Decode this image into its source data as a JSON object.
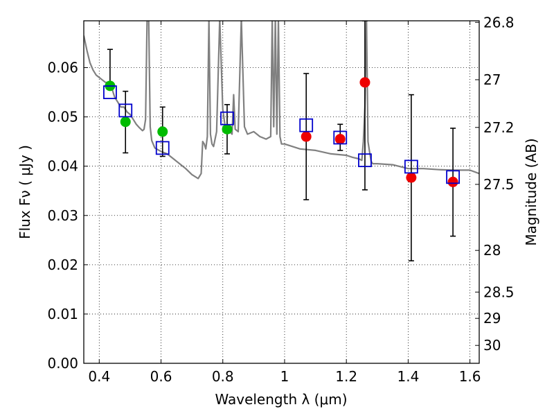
{
  "chart_data": {
    "type": "scatter",
    "xlabel": "Wavelength  λ (μm)",
    "ylabel": "Flux  Fν  ( μJy )",
    "y2label": "Magnitude (AB)",
    "xlim": [
      0.35,
      1.63
    ],
    "ylim": [
      0.0,
      0.0695
    ],
    "xticks": [
      0.4,
      0.6,
      0.8,
      1.0,
      1.2,
      1.4,
      1.6
    ],
    "xtick_labels": [
      "0.4",
      "0.6",
      "0.8",
      "1",
      "1.2",
      "1.4",
      "1.6"
    ],
    "yticks": [
      0.0,
      0.01,
      0.02,
      0.03,
      0.04,
      0.05,
      0.06
    ],
    "ytick_labels": [
      "0.00",
      "0.01",
      "0.02",
      "0.03",
      "0.04",
      "0.05",
      "0.06"
    ],
    "mag_ticks": [
      26.8,
      27,
      27.2,
      27.5,
      28,
      28.5,
      29,
      30
    ],
    "mag_tick_labels": [
      "26.8",
      "27",
      "27.2",
      "27.5",
      "28",
      "28.5",
      "29",
      "30"
    ],
    "grid": true,
    "colors": {
      "model": "#808080",
      "detection_green": "#00bb00",
      "detection_red": "#ee0000",
      "model_box": "#0000cc",
      "errorbar": "#000000"
    },
    "series": [
      {
        "name": "model spectrum",
        "kind": "line",
        "x": [
          0.35,
          0.36,
          0.37,
          0.38,
          0.39,
          0.4,
          0.41,
          0.42,
          0.43,
          0.44,
          0.45,
          0.46,
          0.47,
          0.48,
          0.49,
          0.5,
          0.51,
          0.52,
          0.53,
          0.54,
          0.545,
          0.55,
          0.555,
          0.56,
          0.565,
          0.57,
          0.58,
          0.6,
          0.62,
          0.64,
          0.66,
          0.68,
          0.7,
          0.72,
          0.73,
          0.735,
          0.74,
          0.745,
          0.75,
          0.755,
          0.76,
          0.765,
          0.77,
          0.78,
          0.79,
          0.8,
          0.81,
          0.815,
          0.82,
          0.83,
          0.835,
          0.84,
          0.85,
          0.86,
          0.87,
          0.88,
          0.9,
          0.92,
          0.94,
          0.955,
          0.96,
          0.965,
          0.97,
          0.975,
          0.98,
          0.985,
          0.99,
          1.0,
          1.05,
          1.1,
          1.15,
          1.2,
          1.22,
          1.24,
          1.25,
          1.255,
          1.26,
          1.265,
          1.27,
          1.275,
          1.28,
          1.285,
          1.29,
          1.3,
          1.35,
          1.4,
          1.45,
          1.5,
          1.55,
          1.6,
          1.63
        ],
        "y": [
          0.0665,
          0.0635,
          0.061,
          0.0595,
          0.0585,
          0.058,
          0.0575,
          0.057,
          0.057,
          0.056,
          0.054,
          0.053,
          0.052,
          0.052,
          0.051,
          0.0505,
          0.0495,
          0.0485,
          0.0478,
          0.0472,
          0.0475,
          0.0495,
          0.07,
          0.07,
          0.048,
          0.0452,
          0.0437,
          0.043,
          0.0425,
          0.0415,
          0.0405,
          0.0395,
          0.0383,
          0.0375,
          0.0385,
          0.045,
          0.0445,
          0.0435,
          0.046,
          0.07,
          0.0465,
          0.0445,
          0.044,
          0.047,
          0.07,
          0.0515,
          0.047,
          0.0485,
          0.0472,
          0.0465,
          0.0545,
          0.0475,
          0.047,
          0.07,
          0.048,
          0.0465,
          0.047,
          0.046,
          0.0455,
          0.046,
          0.07,
          0.048,
          0.07,
          0.0465,
          0.07,
          0.046,
          0.0445,
          0.0445,
          0.0435,
          0.0432,
          0.0425,
          0.0422,
          0.0418,
          0.0415,
          0.0412,
          0.045,
          0.052,
          0.07,
          0.045,
          0.043,
          0.041,
          0.0405,
          0.0405,
          0.0405,
          0.0403,
          0.0395,
          0.0395,
          0.0393,
          0.0392,
          0.0392,
          0.0385
        ]
      },
      {
        "name": "observed photometry (green)",
        "kind": "points",
        "x": [
          0.435,
          0.485,
          0.605,
          0.814
        ],
        "y": [
          0.0563,
          0.049,
          0.047,
          0.0475
        ],
        "err_lo": [
          0.0563,
          0.0427,
          0.042,
          0.0425
        ],
        "err_hi": [
          0.0637,
          0.0552,
          0.052,
          0.0525
        ]
      },
      {
        "name": "observed photometry (red)",
        "kind": "points",
        "x": [
          1.07,
          1.18,
          1.26,
          1.41,
          1.545
        ],
        "y": [
          0.046,
          0.0455,
          0.057,
          0.0377,
          0.0368
        ],
        "err_lo": [
          0.0332,
          0.0432,
          0.0352,
          0.0208,
          0.0258
        ],
        "err_hi": [
          0.0588,
          0.0485,
          0.0695,
          0.0545,
          0.0477
        ]
      },
      {
        "name": "model band flux",
        "kind": "squares",
        "x": [
          0.435,
          0.485,
          0.605,
          0.814,
          1.07,
          1.18,
          1.26,
          1.41,
          1.545
        ],
        "y": [
          0.055,
          0.0513,
          0.0437,
          0.0497,
          0.0483,
          0.0458,
          0.0412,
          0.0399,
          0.0378
        ]
      }
    ]
  }
}
